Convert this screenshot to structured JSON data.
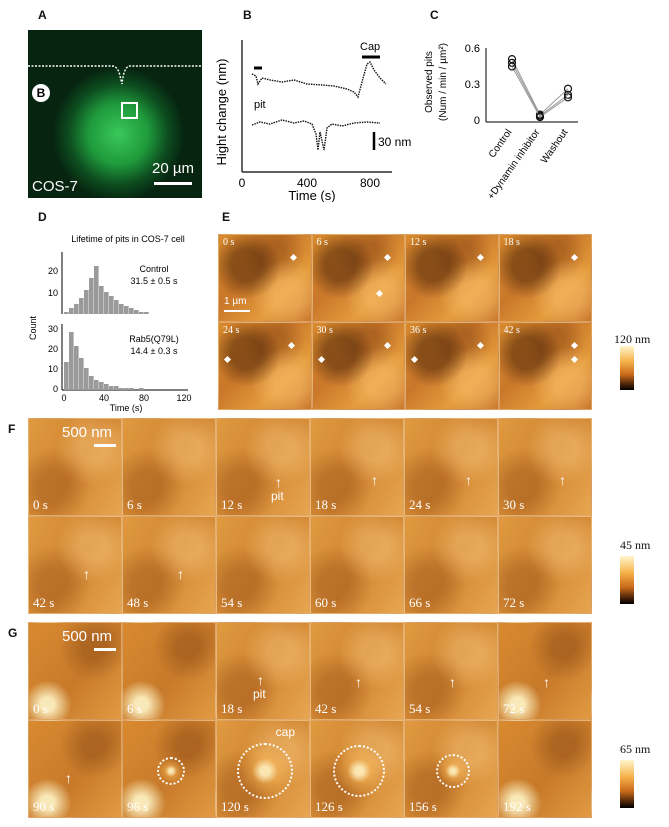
{
  "panels": {
    "A": {
      "label": "A",
      "cell_line": "COS-7",
      "scale": "20 µm",
      "inset": "B"
    },
    "B": {
      "label": "B",
      "ylabel": "Hight change (nm)",
      "xlabel": "Time (s)",
      "cap": "Cap",
      "pit": "pit",
      "scalebar": "30 nm",
      "xticks": [
        "0",
        "400",
        "800"
      ]
    },
    "C": {
      "label": "C",
      "ylabel_line1": "Observed pits",
      "ylabel_line2": "(Num / min / µm²)",
      "yticks": [
        "0.6",
        "0.3",
        "0"
      ],
      "xcats": [
        "Control",
        "+Dynamin inhibitor",
        "Washout"
      ]
    },
    "D": {
      "label": "D",
      "title": "Lifetime of pits in COS-7 cell",
      "ylabel": "Count",
      "xlabel": "Time (s)",
      "control_name": "Control",
      "control_val": "31.5 ± 0.5 s",
      "rab_name": "Rab5(Q79L)",
      "rab_val": "14.4 ± 0.3 s",
      "yticks_top": [
        "20",
        "10"
      ],
      "yticks_bot": [
        "30",
        "20",
        "10",
        "0"
      ],
      "xticks": [
        "0",
        "40",
        "80",
        "120"
      ]
    },
    "E": {
      "label": "E",
      "scale": "1 µm",
      "times": [
        "0 s",
        "6 s",
        "12 s",
        "18 s",
        "24 s",
        "30 s",
        "36 s",
        "42 s"
      ],
      "cbar": "120 nm"
    },
    "F": {
      "label": "F",
      "scale": "500 nm",
      "pit": "pit",
      "times": [
        "0 s",
        "6 s",
        "12 s",
        "18 s",
        "24 s",
        "30 s",
        "42 s",
        "48 s",
        "54 s",
        "60 s",
        "66 s",
        "72 s"
      ],
      "cbar": "45 nm"
    },
    "G": {
      "label": "G",
      "scale": "500 nm",
      "pit": "pit",
      "cap": "cap",
      "times": [
        "0 s",
        "6 s",
        "18 s",
        "42 s",
        "54 s",
        "72 s",
        "90 s",
        "96 s",
        "120 s",
        "126 s",
        "156 s",
        "192 s"
      ],
      "cbar": "65 nm"
    }
  },
  "chart_data": [
    {
      "type": "line",
      "panel": "C",
      "categories": [
        "Control",
        "+Dynamin inhibitor",
        "Washout"
      ],
      "series": [
        {
          "values": [
            0.51,
            0.06,
            0.27
          ]
        },
        {
          "values": [
            0.48,
            0.05,
            0.22
          ]
        },
        {
          "values": [
            0.45,
            0.04,
            0.2
          ]
        }
      ],
      "ylim": [
        0,
        0.6
      ]
    },
    {
      "type": "bar",
      "panel": "D-Control",
      "bins": [
        0,
        5,
        10,
        15,
        20,
        25,
        30,
        35,
        40,
        45,
        50,
        55,
        60,
        65,
        70,
        75,
        80
      ],
      "values": [
        1,
        3,
        5,
        8,
        12,
        18,
        24,
        14,
        11,
        9,
        7,
        5,
        4,
        3,
        2,
        1,
        1
      ]
    },
    {
      "type": "bar",
      "panel": "D-Rab5",
      "bins": [
        0,
        5,
        10,
        15,
        20,
        25,
        30,
        35,
        40,
        45,
        50,
        55,
        60,
        65,
        70,
        75,
        80
      ],
      "values": [
        14,
        29,
        22,
        16,
        11,
        7,
        5,
        4,
        3,
        2,
        2,
        1,
        1,
        1,
        0,
        1,
        0
      ]
    }
  ]
}
